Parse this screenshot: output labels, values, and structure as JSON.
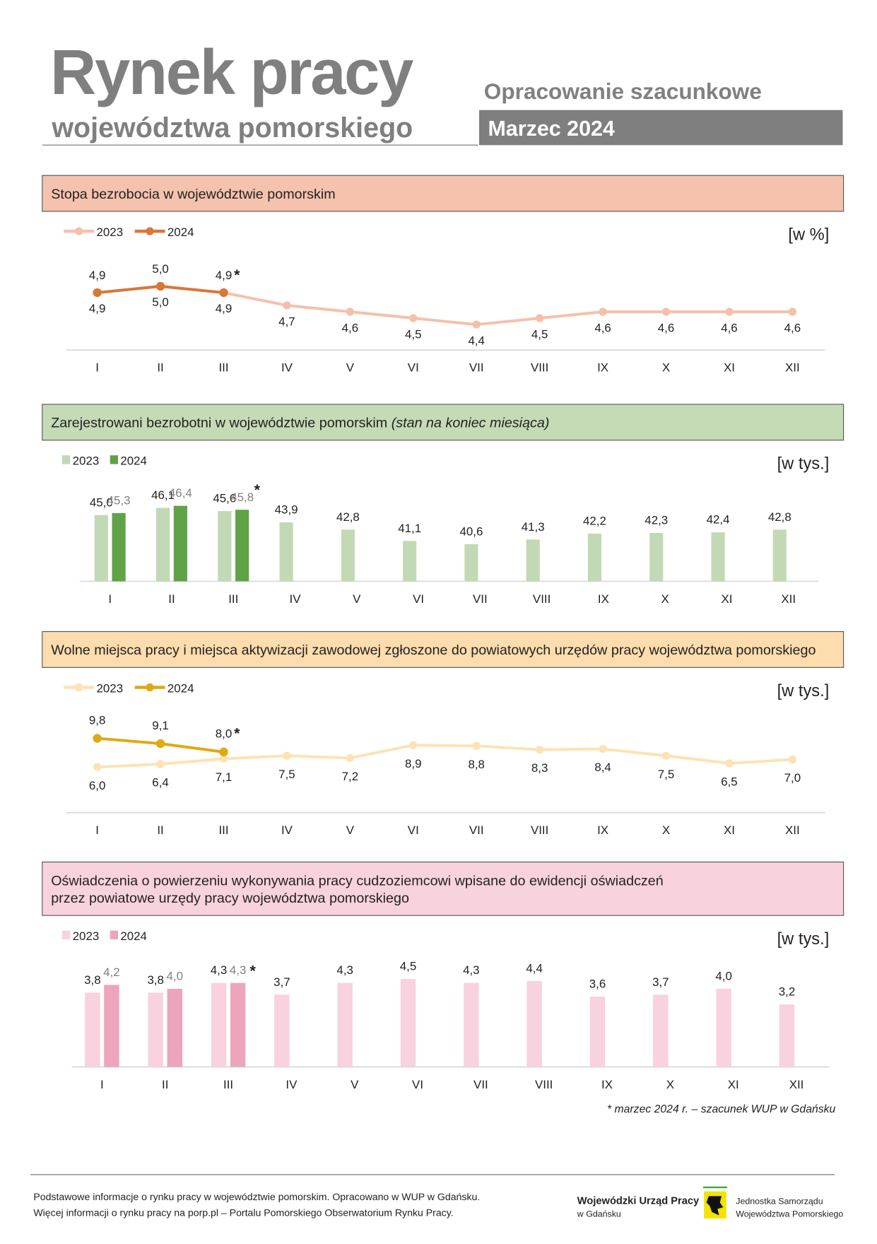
{
  "header": {
    "title": "Rynek pracy",
    "subtitle": "województwa pomorskiego",
    "note": "Opracowanie szacunkowe",
    "period": "Marzec 2024"
  },
  "chart_data": [
    {
      "type": "line",
      "title": [
        "Stopa bezrobocia w województwie pomorskim"
      ],
      "unit": "[w %]",
      "marker": "*",
      "categories": [
        "I",
        "II",
        "III",
        "IV",
        "V",
        "VI",
        "VII",
        "VIII",
        "IX",
        "X",
        "XI",
        "XII"
      ],
      "ylim": [
        4,
        5.7
      ],
      "series": [
        {
          "name": "2023",
          "color": "#f5c0aa",
          "values": [
            4.9,
            5.0,
            4.9,
            4.7,
            4.6,
            4.5,
            4.4,
            4.5,
            4.6,
            4.6,
            4.6,
            4.6
          ],
          "value_labels": [
            "4,9",
            "5,0",
            "4,9",
            "4,7",
            "4,6",
            "4,5",
            "4,4",
            "4,5",
            "4,6",
            "4,6",
            "4,6",
            "4,6"
          ]
        },
        {
          "name": "2024",
          "color": "#d8773a",
          "values": [
            4.9,
            5.0,
            4.9,
            null,
            null,
            null,
            null,
            null,
            null,
            null,
            null,
            null
          ],
          "value_labels": [
            "4,9",
            "5,0",
            "4,9",
            null,
            null,
            null,
            null,
            null,
            null,
            null,
            null,
            null
          ]
        }
      ]
    },
    {
      "type": "bar",
      "title": [
        "Zarejestrowani bezrobotni w województwie pomorskim"
      ],
      "title_note": "(stan na koniec miesiąca)",
      "unit": "[w tys.]",
      "marker": "*",
      "categories": [
        "I",
        "II",
        "III",
        "IV",
        "V",
        "VI",
        "VII",
        "VIII",
        "IX",
        "X",
        "XI",
        "XII"
      ],
      "ylim": [
        35,
        48
      ],
      "series": [
        {
          "name": "2023",
          "color": "#c2d9b6",
          "values": [
            45.0,
            46.1,
            45.6,
            43.9,
            42.8,
            41.1,
            40.6,
            41.3,
            42.2,
            42.3,
            42.4,
            42.8
          ],
          "value_labels": [
            "45,0",
            "46,1",
            "45,6",
            "43,9",
            "42,8",
            "41,1",
            "40,6",
            "41,3",
            "42,2",
            "42,3",
            "42,4",
            "42,8"
          ]
        },
        {
          "name": "2024",
          "color": "#5fa346",
          "values": [
            45.3,
            46.4,
            45.8,
            null,
            null,
            null,
            null,
            null,
            null,
            null,
            null,
            null
          ],
          "value_labels": [
            "45,3",
            "46,4",
            "45,8",
            null,
            null,
            null,
            null,
            null,
            null,
            null,
            null,
            null
          ]
        }
      ]
    },
    {
      "type": "line",
      "title": [
        "Wolne miejsca pracy i miejsca aktywizacji zawodowej zgłoszone do powiatowych urzędów pracy województwa pomorskiego"
      ],
      "unit": "[w tys.]",
      "marker": "*",
      "categories": [
        "I",
        "II",
        "III",
        "IV",
        "V",
        "VI",
        "VII",
        "VIII",
        "IX",
        "X",
        "XI",
        "XII"
      ],
      "ylim": [
        0,
        12
      ],
      "series": [
        {
          "name": "2023",
          "color": "#fde2b4",
          "values": [
            6.0,
            6.4,
            7.1,
            7.5,
            7.2,
            8.9,
            8.8,
            8.3,
            8.4,
            7.5,
            6.5,
            7.0
          ],
          "value_labels": [
            "6,0",
            "6,4",
            "7,1",
            "7,5",
            "7,2",
            "8,9",
            "8,8",
            "8,3",
            "8,4",
            "7,5",
            "6,5",
            "7,0"
          ]
        },
        {
          "name": "2024",
          "color": "#deaa10",
          "values": [
            9.8,
            9.1,
            8.0,
            null,
            null,
            null,
            null,
            null,
            null,
            null,
            null,
            null
          ],
          "value_labels": [
            "9,8",
            "9,1",
            "8,0",
            null,
            null,
            null,
            null,
            null,
            null,
            null,
            null,
            null
          ]
        }
      ]
    },
    {
      "type": "bar",
      "title": [
        "Oświadczenia o powierzeniu wykonywania pracy cudzoziemcowi wpisane do ewidencji oświadczeń",
        "przez powiatowe urzędy pracy województwa pomorskiego"
      ],
      "unit": "[w tys.]",
      "marker": "*",
      "categories": [
        "I",
        "II",
        "III",
        "IV",
        "V",
        "VI",
        "VII",
        "VIII",
        "IX",
        "X",
        "XI",
        "XII"
      ],
      "ylim": [
        0,
        5
      ],
      "series": [
        {
          "name": "2023",
          "color": "#f8d2de",
          "values": [
            3.8,
            3.8,
            4.3,
            3.7,
            4.3,
            4.5,
            4.3,
            4.4,
            3.6,
            3.7,
            4.0,
            3.2
          ],
          "value_labels": [
            "3,8",
            "3,8",
            "4,3",
            "3,7",
            "4,3",
            "4,5",
            "4,3",
            "4,4",
            "3,6",
            "3,7",
            "4,0",
            "3,2"
          ]
        },
        {
          "name": "2024",
          "color": "#eda5bb",
          "values": [
            4.2,
            4.0,
            4.3,
            null,
            null,
            null,
            null,
            null,
            null,
            null,
            null,
            null
          ],
          "value_labels": [
            "4,2",
            "4,0",
            "4,3",
            null,
            null,
            null,
            null,
            null,
            null,
            null,
            null,
            null
          ]
        }
      ]
    }
  ],
  "footnote": "* marzec 2024 r. – szacunek WUP w Gdańsku",
  "footer": {
    "lines": [
      "Podstawowe informacje o rynku pracy w województwie pomorskim. Opracowano w WUP w Gdańsku.",
      "Więcej informacji o rynku pracy na porp.pl – Portalu Pomorskiego Obserwatorium Rynku Pracy."
    ],
    "org_name": "Wojewódzki Urząd Pracy",
    "org_city": "w Gdańsku",
    "gov_lines": [
      "Jednostka Samorządu",
      "Województwa Pomorskiego"
    ]
  }
}
